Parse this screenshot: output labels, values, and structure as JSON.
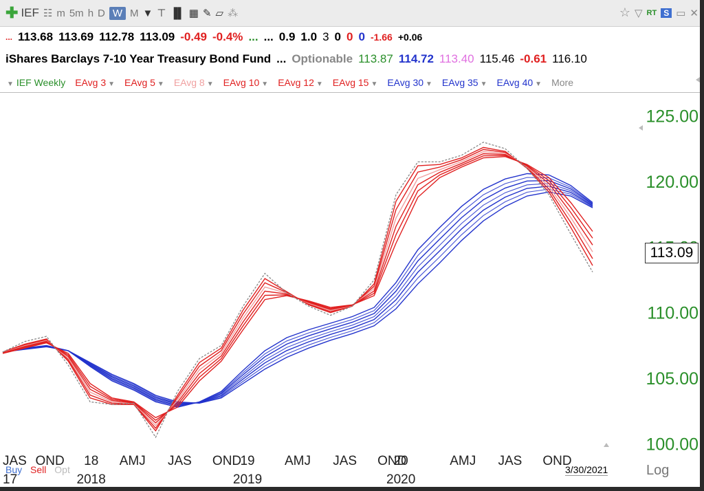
{
  "toolbar": {
    "ticker": "IEF",
    "intervals": [
      "m",
      "5m",
      "h",
      "D",
      "W",
      "M"
    ],
    "active_interval": "W",
    "rt_label": "RT",
    "s_label": "S"
  },
  "quote": {
    "dots_left": "...",
    "open": "113.68",
    "high": "113.69",
    "low": "112.78",
    "close": "113.09",
    "change": "-0.49",
    "change_pct": "-0.4%",
    "dots_mid": "...",
    "dots_mid2": "...",
    "v1": "0.9",
    "v2": "1.0",
    "v3": "3",
    "v4": "0",
    "v5": "0",
    "v6": "0",
    "v7": "-1.66",
    "v8": "+0.06",
    "name": "iShares Barclays 7-10 Year Treasury Bond Fund",
    "dots_name": "...",
    "optionable": "Optionable",
    "p1": "113.87",
    "p2": "114.72",
    "p3": "113.40",
    "p4": "115.46",
    "p5": "-0.61",
    "p6": "116.10"
  },
  "legend": [
    {
      "label": "IEF Weekly",
      "color": "#2a8f2a"
    },
    {
      "label": "EAvg 3",
      "color": "#e02020"
    },
    {
      "label": "EAvg 5",
      "color": "#e02020"
    },
    {
      "label": "EAvg 8",
      "color": "#f0a0a0"
    },
    {
      "label": "EAvg 10",
      "color": "#e02020"
    },
    {
      "label": "EAvg 12",
      "color": "#e02020"
    },
    {
      "label": "EAvg 15",
      "color": "#e02020"
    },
    {
      "label": "EAvg 30",
      "color": "#2233cc"
    },
    {
      "label": "EAvg 35",
      "color": "#2233cc"
    },
    {
      "label": "EAvg 40",
      "color": "#2233cc"
    },
    {
      "label": "More",
      "color": "#888888"
    }
  ],
  "price_box": "113.09",
  "date_box": "3/30/2021",
  "scale_mode": "Log",
  "buy_label": "Buy",
  "sell_label": "Sell",
  "opt_label": "Opt",
  "colors": {
    "price": "#888888",
    "short_avg": "#e02020",
    "short_avg_light": "#f0a0a0",
    "long_avg": "#2233cc",
    "axis_text": "#2a8f2a"
  },
  "chart_data": {
    "type": "line",
    "title": "IEF Weekly",
    "y_ticks": [
      "125.00",
      "120.00",
      "115.00",
      "110.00",
      "105.00",
      "100.00"
    ],
    "ylim": [
      99.5,
      126.5
    ],
    "x_month_labels": [
      "JAS",
      "OND",
      "AMJ",
      "JAS",
      "OND",
      "AMJ",
      "JAS",
      "OND",
      "AMJ",
      "JAS",
      "OND"
    ],
    "x_year_labels": [
      "17",
      "18",
      "2018",
      "19",
      "2019",
      "20",
      "2020"
    ],
    "x": [
      "2017-08",
      "2017-10",
      "2017-12",
      "2018-02",
      "2018-04",
      "2018-06",
      "2018-08",
      "2018-10",
      "2018-12",
      "2019-01",
      "2019-03",
      "2019-05",
      "2019-06",
      "2019-07",
      "2019-09",
      "2019-10",
      "2019-12",
      "2020-01",
      "2020-02",
      "2020-03",
      "2020-04",
      "2020-06",
      "2020-08",
      "2020-09",
      "2020-11",
      "2021-01",
      "2021-02",
      "2021-03"
    ],
    "series": [
      {
        "name": "IEF Weekly",
        "values": [
          107.0,
          107.8,
          108.2,
          106.0,
          103.2,
          103.0,
          103.1,
          100.5,
          104.0,
          106.5,
          107.5,
          110.5,
          113.0,
          111.5,
          110.5,
          109.8,
          110.5,
          112.5,
          119.0,
          121.5,
          121.5,
          122.0,
          123.0,
          122.5,
          121.0,
          119.0,
          116.0,
          113.1
        ]
      },
      {
        "name": "EAvg 3",
        "values": [
          107.0,
          107.6,
          108.0,
          106.3,
          103.5,
          103.0,
          103.0,
          101.0,
          103.7,
          106.2,
          107.3,
          110.2,
          112.6,
          111.6,
          110.6,
          110.0,
          110.5,
          112.2,
          118.5,
          121.2,
          121.3,
          121.8,
          122.6,
          122.3,
          121.0,
          119.2,
          116.5,
          113.6
        ]
      },
      {
        "name": "EAvg 15",
        "values": [
          106.9,
          107.3,
          107.7,
          106.9,
          104.6,
          103.5,
          103.2,
          102.0,
          102.8,
          104.8,
          106.3,
          108.7,
          111.0,
          111.3,
          110.9,
          110.4,
          110.6,
          111.3,
          115.3,
          118.8,
          120.3,
          121.1,
          121.8,
          121.9,
          121.3,
          120.3,
          118.4,
          116.2
        ]
      },
      {
        "name": "EAvg 30",
        "values": [
          107.0,
          107.3,
          107.5,
          107.1,
          105.9,
          104.8,
          104.1,
          103.2,
          102.8,
          103.2,
          104.0,
          105.6,
          107.1,
          108.1,
          108.7,
          109.2,
          109.7,
          110.4,
          112.3,
          114.8,
          116.5,
          118.1,
          119.4,
          120.2,
          120.6,
          120.5,
          119.7,
          118.4
        ]
      },
      {
        "name": "EAvg 40",
        "values": [
          107.0,
          107.2,
          107.4,
          107.1,
          106.2,
          105.3,
          104.6,
          103.7,
          103.2,
          103.1,
          103.5,
          104.6,
          105.7,
          106.6,
          107.3,
          107.9,
          108.4,
          109.0,
          110.3,
          112.2,
          113.8,
          115.5,
          117.0,
          118.1,
          118.9,
          119.2,
          118.9,
          118.0
        ]
      }
    ]
  }
}
